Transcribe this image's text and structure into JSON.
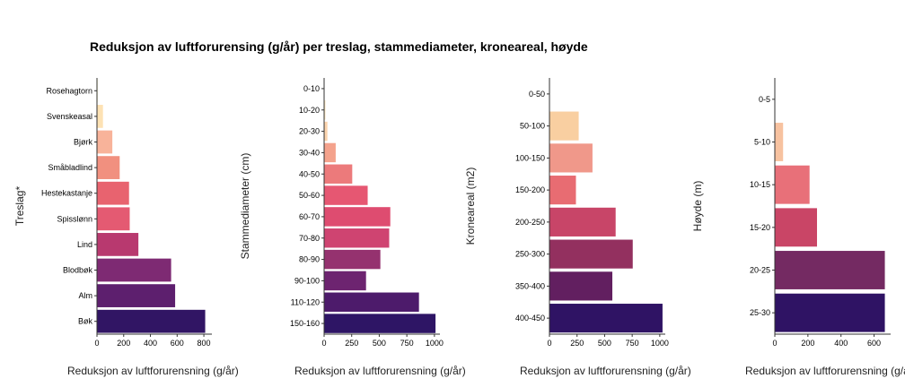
{
  "title": "Reduksjon av luftforurensing (g/år) per treslag, stammediameter, kroneareal, høyde",
  "chart_data": [
    {
      "type": "bar",
      "orientation": "horizontal",
      "ylabel": "Treslag*",
      "xlabel": "Reduksjon av luftforurensning (g/år)",
      "categories": [
        "Rosehagtorn",
        "Svenskeasal",
        "Bjørk",
        "Småbladlind",
        "Hestekastanje",
        "Spisslønn",
        "Lind",
        "Blodbøk",
        "Alm",
        "Bøk"
      ],
      "values": [
        5,
        45,
        115,
        170,
        240,
        245,
        310,
        555,
        585,
        810
      ],
      "colors": [
        "#fcfdbf",
        "#fde2b4",
        "#f8b39a",
        "#f1907f",
        "#e8636f",
        "#e45a72",
        "#b8396f",
        "#7e2a73",
        "#5d1f6e",
        "#311564"
      ],
      "xticks": [
        0,
        200,
        400,
        600,
        800
      ],
      "xlim": [
        0,
        860
      ]
    },
    {
      "type": "bar",
      "orientation": "horizontal",
      "ylabel": "Stammediameter (cm)",
      "xlabel": "Reduksjon av luftforurensning (g/år)",
      "categories": [
        "0-10",
        "10-20",
        "20-30",
        "30-40",
        "40-50",
        "50-60",
        "60-70",
        "70-80",
        "80-90",
        "90-100",
        "110-120",
        "150-160"
      ],
      "values": [
        3,
        12,
        30,
        105,
        255,
        395,
        600,
        590,
        510,
        380,
        860,
        1010
      ],
      "colors": [
        "#fcfdbf",
        "#fde8c0",
        "#fbd3ad",
        "#f4a28c",
        "#ec7a7b",
        "#e65772",
        "#de4c70",
        "#cf4471",
        "#95326f",
        "#6d2470",
        "#4d1b6b",
        "#2e1565"
      ],
      "xticks": [
        0,
        250,
        500,
        750,
        1000
      ],
      "xlim": [
        0,
        1050
      ]
    },
    {
      "type": "bar",
      "orientation": "horizontal",
      "ylabel": "Kroneareal (m2)",
      "xlabel": "Reduksjon av luftforurensning (g/år)",
      "categories": [
        "0-50",
        "50-100",
        "100-150",
        "150-200",
        "200-250",
        "250-300",
        "350-400",
        "400-450"
      ],
      "values": [
        2,
        265,
        390,
        240,
        600,
        755,
        570,
        1025
      ],
      "colors": [
        "#fcfdbf",
        "#f9cfa1",
        "#f0988a",
        "#e86c72",
        "#c84568",
        "#93305f",
        "#621f60",
        "#2f1364"
      ],
      "xticks": [
        0,
        250,
        500,
        750,
        1000
      ],
      "xlim": [
        0,
        1050
      ]
    },
    {
      "type": "bar",
      "orientation": "horizontal",
      "ylabel": "Høyde (m)",
      "xlabel": "Reduksjon av luftforurensning (g/år)",
      "categories": [
        "0-5",
        "5-10",
        "10-15",
        "15-20",
        "20-25",
        "25-30"
      ],
      "values": [
        2,
        50,
        210,
        255,
        665,
        665
      ],
      "colors": [
        "#fcfdbf",
        "#f7c2a0",
        "#e87079",
        "#c94566",
        "#742a62",
        "#2f1364"
      ],
      "xticks": [
        0,
        200,
        400,
        600
      ],
      "xlim": [
        0,
        700
      ]
    }
  ]
}
